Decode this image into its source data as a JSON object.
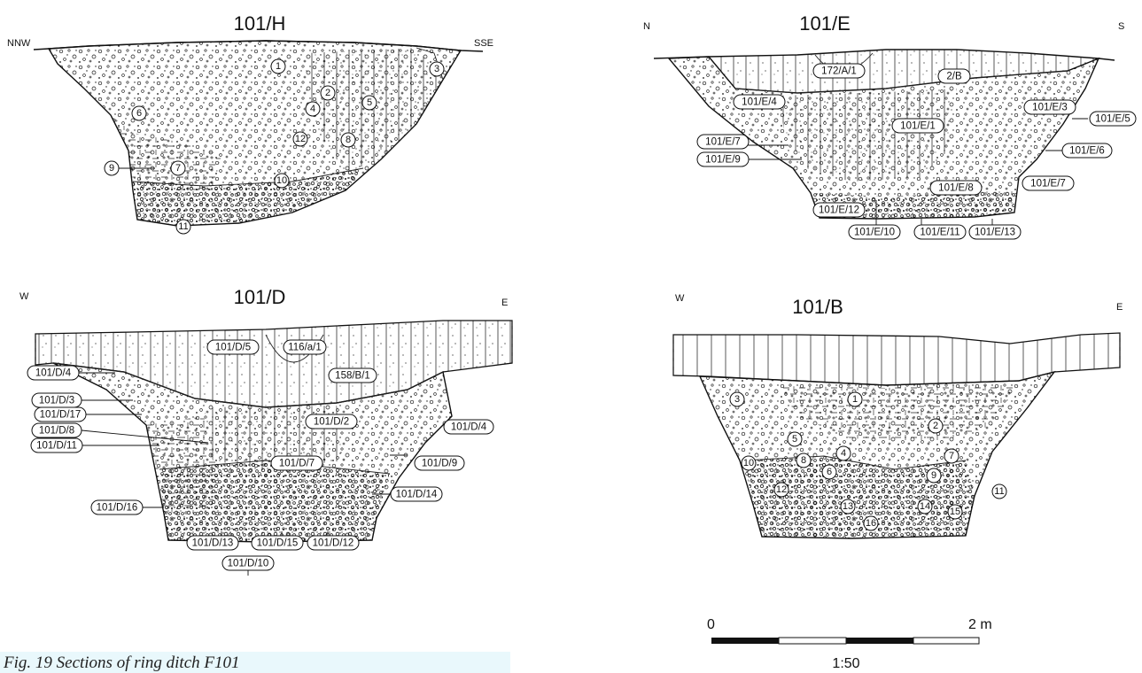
{
  "sections": {
    "h": {
      "title": "101/H",
      "left_dir": "NNW",
      "right_dir": "SSE",
      "numbers": [
        "1",
        "2",
        "3",
        "4",
        "5",
        "6",
        "7",
        "8",
        "9",
        "10",
        "11",
        "12"
      ]
    },
    "e": {
      "title": "101/E",
      "left_dir": "N",
      "right_dir": "S",
      "labels": [
        "172/A/1",
        "2/B",
        "101/E/4",
        "101/E/3",
        "101/E/5",
        "101/E/1",
        "101/E/7",
        "101/E/9",
        "101/E/6",
        "101/E/7",
        "101/E/8",
        "101/E/12",
        "101/E/10",
        "101/E/11",
        "101/E/13"
      ]
    },
    "d": {
      "title": "101/D",
      "left_dir": "W",
      "right_dir": "E",
      "labels": [
        "101/D/5",
        "116/a/1",
        "158/B/1",
        "101/D/4",
        "101/D/3",
        "101/D/17",
        "101/D/2",
        "101/D/8",
        "101/D/4",
        "101/D/11",
        "101/D/7",
        "101/D/9",
        "101/D/14",
        "101/D/16",
        "101/D/13",
        "101/D/15",
        "101/D/12",
        "101/D/10"
      ]
    },
    "b": {
      "title": "101/B",
      "left_dir": "W",
      "right_dir": "E",
      "numbers": [
        "1",
        "2",
        "3",
        "4",
        "5",
        "6",
        "7",
        "8",
        "9",
        "10",
        "11",
        "12",
        "13",
        "14",
        "15",
        "16"
      ]
    }
  },
  "scale": {
    "zero": "0",
    "end": "2 m",
    "ratio": "1:50"
  },
  "caption": "Fig. 19   Sections of ring ditch F101"
}
